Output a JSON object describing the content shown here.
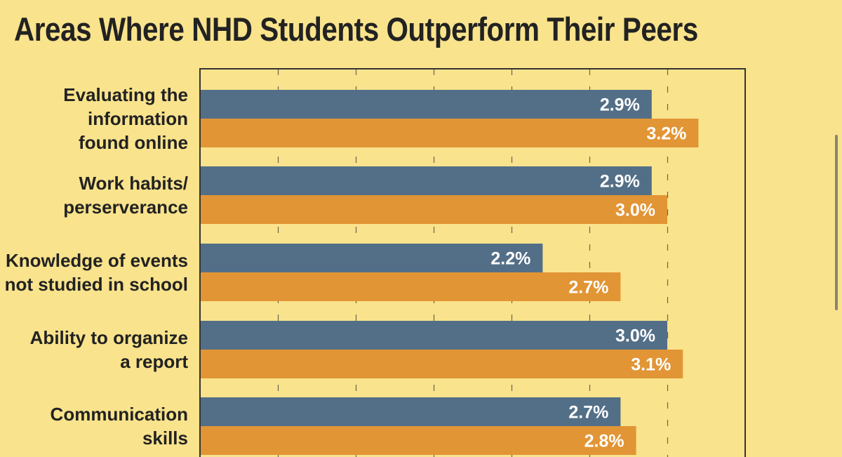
{
  "chart_data": {
    "type": "bar",
    "orientation": "horizontal",
    "title": "Areas Where NHD Students Outperform Their Peers",
    "categories": [
      [
        "Evaluating the",
        "information",
        "found online"
      ],
      [
        "Work habits/",
        "perserverance"
      ],
      [
        "Knowledge of events",
        "not studied in school"
      ],
      [
        "Ability to organize",
        "a report"
      ],
      [
        "Communication",
        "skills"
      ]
    ],
    "series": [
      {
        "color": "#536f87",
        "values": [
          2.9,
          2.9,
          2.2,
          3.0,
          2.7
        ]
      },
      {
        "color": "#e29535",
        "values": [
          3.2,
          3.0,
          2.7,
          3.1,
          2.8
        ]
      }
    ],
    "value_labels": [
      [
        "2.9%",
        "3.2%"
      ],
      [
        "2.9%",
        "3.0%"
      ],
      [
        "2.2%",
        "2.7%"
      ],
      [
        "3.0%",
        "3.1%"
      ],
      [
        "2.7%",
        "2.8%"
      ]
    ],
    "xlim": [
      0,
      3.5
    ],
    "grid": true,
    "grid_style": "dashed vertical"
  },
  "colors": {
    "background": "#f9e38c",
    "plot_border": "#333333",
    "text": "#222222",
    "value_text": "#ffffff"
  }
}
